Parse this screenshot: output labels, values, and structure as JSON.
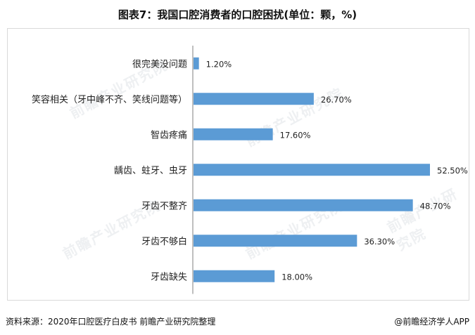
{
  "title": "图表7：我国口腔消费者的口腔困扰(单位：颗，%)",
  "watermark": "前瞻产业研究院",
  "footer": {
    "source": "资料来源：2020年口腔医疗白皮书 前瞻产业研究院整理",
    "brand": "@前瞻经济学人APP"
  },
  "colors": {
    "bar": "#5b9bd5",
    "axis": "#7f7f7f"
  },
  "chart_data": {
    "type": "bar",
    "orientation": "horizontal",
    "categories": [
      "很完美没问题",
      "笑容相关（牙中峰不齐、笑线问题等）",
      "智齿疼痛",
      "龋齿、蛀牙、虫牙",
      "牙齿不整齐",
      "牙齿不够白",
      "牙齿缺失"
    ],
    "values": [
      1.2,
      26.7,
      17.6,
      52.5,
      48.7,
      36.3,
      18.0
    ],
    "value_labels": [
      "1.20%",
      "26.70%",
      "17.60%",
      "52.50%",
      "48.70%",
      "36.30%",
      "18.00%"
    ],
    "xlim": [
      0,
      55
    ],
    "grid": false,
    "legend": "none"
  }
}
